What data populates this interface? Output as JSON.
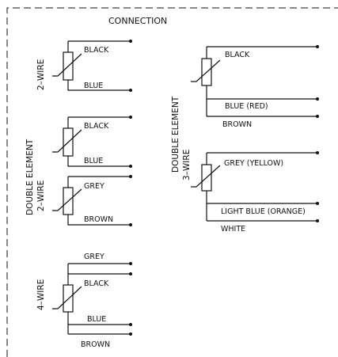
{
  "title": "CONNECTION",
  "sections": {
    "two_wire": {
      "label": "2–WIRE",
      "wires": [
        "BLACK",
        "BLUE"
      ]
    },
    "double_two_wire": {
      "label_line1": "DOUBLE ELEMENT",
      "label_line2": "2–WIRE",
      "element_a_wires": [
        "BLACK",
        "BLUE"
      ],
      "element_b_wires": [
        "GREY",
        "BROWN"
      ]
    },
    "four_wire": {
      "label": "4–WIRE",
      "wires": [
        "GREY",
        "BLACK",
        "BLUE",
        "BROWN"
      ]
    },
    "double_three_wire": {
      "label_line1": "DOUBLE ELEMENT",
      "label_line2": "3–WIRE",
      "element_a_wires": [
        "BLACK",
        "BLUE (RED)",
        "BROWN"
      ],
      "element_b_wires": [
        "GREY (YELLOW)",
        "LIGHT BLUE (ORANGE)",
        "WHITE"
      ]
    }
  }
}
